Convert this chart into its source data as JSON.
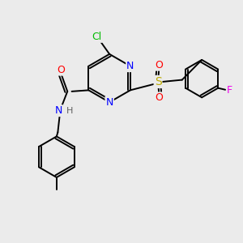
{
  "bg_color": "#ebebeb",
  "bond_color": "#000000",
  "bond_width": 1.4,
  "atoms": {
    "Cl": {
      "color": "#00bb00"
    },
    "N": {
      "color": "#0000ff"
    },
    "O": {
      "color": "#ff0000"
    },
    "S": {
      "color": "#bbaa00"
    },
    "F": {
      "color": "#ee00ee"
    },
    "H": {
      "color": "#606060"
    }
  },
  "figsize": [
    3.0,
    3.0
  ],
  "dpi": 100
}
